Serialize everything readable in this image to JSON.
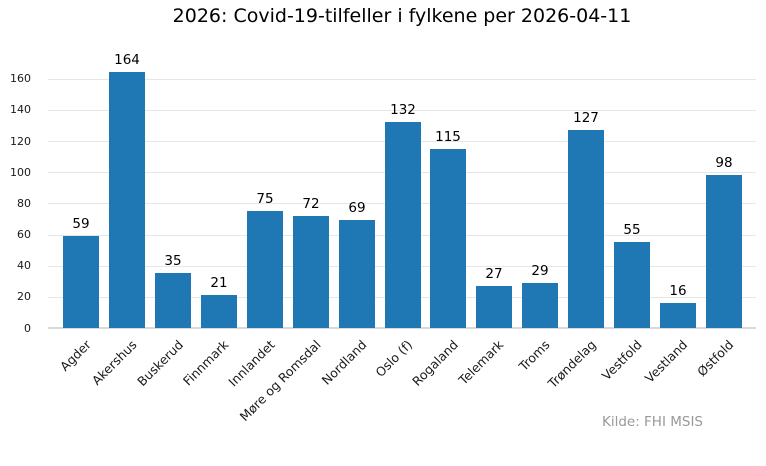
{
  "source_note": "Kilde: FHI MSIS",
  "colors": {
    "bar": "#1f77b4",
    "grid": "#e6e6e6",
    "axis_line": "#d9d9d9",
    "title_text": "#000000",
    "tick_text": "#1a1a1a",
    "value_label_text": "#000000",
    "source_text": "#999999",
    "background": "#ffffff"
  },
  "chart_data": {
    "type": "bar",
    "title": "2026: Covid-19-tilfeller i fylkene per 2026-04-11",
    "xlabel": "",
    "ylabel": "",
    "categories": [
      "Agder",
      "Akershus",
      "Buskerud",
      "Finnmark",
      "Innlandet",
      "Møre og Romsdal",
      "Nordland",
      "Oslo (f)",
      "Rogaland",
      "Telemark",
      "Troms",
      "Trøndelag",
      "Vestfold",
      "Vestland",
      "Østfold"
    ],
    "values": [
      59,
      164,
      35,
      21,
      75,
      72,
      69,
      132,
      115,
      27,
      29,
      127,
      55,
      16,
      98
    ],
    "ylim": [
      0,
      172
    ],
    "yticks": [
      0,
      20,
      40,
      60,
      80,
      100,
      120,
      140,
      160
    ],
    "grid": true,
    "bar_labels_visible": true,
    "x_tick_rotation": -45,
    "legend": "none",
    "annotation": "Kilde: FHI MSIS"
  }
}
